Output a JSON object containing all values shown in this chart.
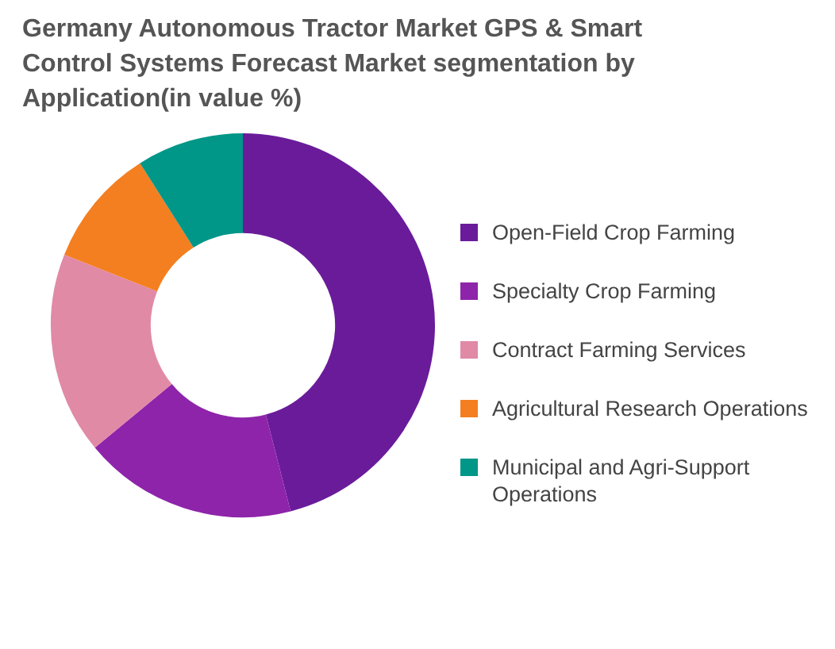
{
  "chart_data": {
    "type": "donut",
    "title": "Germany Autonomous Tractor Market GPS & Smart Control Systems Forecast Market segmentation by Application(in value %)",
    "categories": [
      "Open-Field Crop Farming",
      "Specialty Crop Farming",
      "Contract Farming Services",
      "Agricultural Research Operations",
      "Municipal and Agri-Support Operations"
    ],
    "values": [
      46,
      18,
      17,
      10,
      9
    ],
    "colors": [
      "#6a1b9a",
      "#8e24aa",
      "#e08aa6",
      "#f47f20",
      "#009688"
    ],
    "legend": "right"
  }
}
